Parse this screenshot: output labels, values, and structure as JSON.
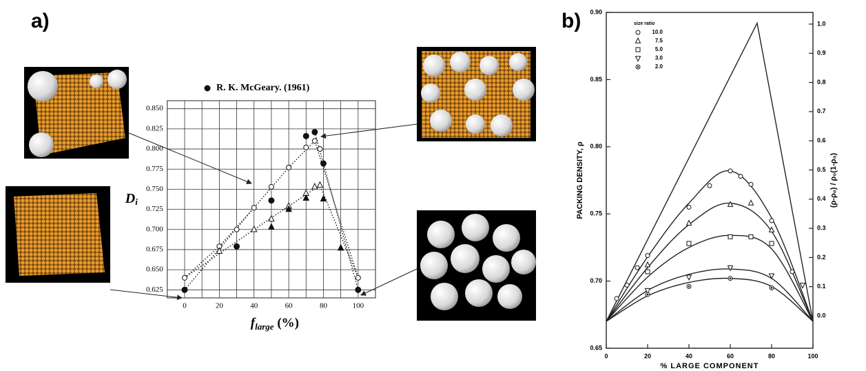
{
  "chart_data": [
    {
      "type": "scatter",
      "panel_label": "a)",
      "xlabel": {
        "text": "f",
        "sub": "large",
        "tail": " (%)"
      },
      "ylabel": {
        "text": "D",
        "sub": "i"
      },
      "xlim": [
        -10,
        110
      ],
      "ylim": [
        0.615,
        0.86
      ],
      "xticks": [
        0,
        20,
        40,
        60,
        80,
        100
      ],
      "xgrid": [
        0,
        10,
        20,
        30,
        40,
        50,
        60,
        70,
        80,
        90,
        100
      ],
      "yticks": [
        {
          "value": 0.625,
          "label": "0.625"
        },
        {
          "value": 0.65,
          "label": "0.650"
        },
        {
          "value": 0.675,
          "label": "0.675"
        },
        {
          "value": 0.7,
          "label": "0.700"
        },
        {
          "value": 0.725,
          "label": "0.725"
        },
        {
          "value": 0.75,
          "label": "0.750"
        },
        {
          "value": 0.775,
          "label": "0.775"
        },
        {
          "value": 0.8,
          "label": "0.800"
        },
        {
          "value": 0.825,
          "label": "0.825"
        },
        {
          "value": 0.85,
          "label": "0.850"
        }
      ],
      "grid": true,
      "series": [
        {
          "name": "R. K. McGeary. (1961)",
          "marker": "circle",
          "filled": true,
          "color": "#111111",
          "size": 4,
          "x": [
            0,
            30,
            50,
            70,
            75,
            80,
            100
          ],
          "values": [
            0.625,
            0.679,
            0.736,
            0.816,
            0.821,
            0.782,
            0.625
          ]
        },
        {
          "marker": "circle",
          "filled": false,
          "color": "#111111",
          "size": 3.5,
          "x": [
            0,
            20,
            30,
            40,
            50,
            60,
            70,
            75,
            78,
            100
          ],
          "values": [
            0.64,
            0.679,
            0.7,
            0.727,
            0.753,
            0.777,
            0.802,
            0.81,
            0.8,
            0.64
          ]
        },
        {
          "marker": "triangle",
          "filled": false,
          "color": "#111111",
          "size": 4,
          "x": [
            20,
            40,
            50,
            60,
            70,
            75,
            78
          ],
          "values": [
            0.673,
            0.7,
            0.713,
            0.729,
            0.745,
            0.753,
            0.755
          ]
        },
        {
          "marker": "triangle",
          "filled": true,
          "color": "#111111",
          "size": 4,
          "x": [
            50,
            60,
            70,
            80,
            90
          ],
          "values": [
            0.703,
            0.725,
            0.739,
            0.738,
            0.677
          ]
        }
      ],
      "lines": [
        {
          "style": "dotted",
          "x": [
            0,
            20,
            40,
            60,
            75,
            100
          ],
          "values": [
            0.64,
            0.679,
            0.727,
            0.777,
            0.81,
            0.64
          ]
        },
        {
          "style": "dotted",
          "x": [
            0,
            40,
            78,
            100
          ],
          "values": [
            0.64,
            0.7,
            0.755,
            0.64
          ]
        },
        {
          "style": "dotted",
          "x": [
            75,
            100
          ],
          "values": [
            0.821,
            0.625
          ]
        },
        {
          "style": "dotted",
          "x": [
            0,
            40
          ],
          "values": [
            0.625,
            0.727
          ]
        }
      ]
    },
    {
      "type": "scatter",
      "panel_label": "b)",
      "xlabel": "% LARGE COMPONENT",
      "ylabel": "PACKING  DENSITY,  ρ",
      "y2label": "(ρ-ρ₀) / ρ₀(1-ρ₀)",
      "legend_title": "size   ratio",
      "xlim": [
        0,
        100
      ],
      "ylim": [
        0.65,
        0.9
      ],
      "y2lim": [
        -0.111,
        1.04
      ],
      "xticks": [
        0,
        20,
        40,
        60,
        80,
        100
      ],
      "yticks": [
        0.65,
        {
          "value": 0.7,
          "label": "0.70"
        },
        0.75,
        {
          "value": 0.8,
          "label": "0.80"
        },
        0.85,
        {
          "value": 0.9,
          "label": "0.90"
        }
      ],
      "y2ticks": [
        {
          "value": 0,
          "label": "0.0"
        },
        0.1,
        0.2,
        0.3,
        0.4,
        0.5,
        0.6,
        0.7,
        0.8,
        0.9,
        {
          "value": 1,
          "label": "1.0"
        }
      ],
      "grid": false,
      "series": [
        {
          "name": "10.0",
          "marker": "circle",
          "filled": false,
          "color": "#111111",
          "size": 3,
          "x": [
            5,
            10,
            15,
            20,
            40,
            50,
            60,
            65,
            70,
            80,
            90
          ],
          "values": [
            0.687,
            0.697,
            0.71,
            0.719,
            0.755,
            0.771,
            0.782,
            0.778,
            0.772,
            0.745,
            0.707
          ]
        },
        {
          "name": "7.5",
          "marker": "triangle",
          "filled": false,
          "color": "#111111",
          "size": 3.5,
          "x": [
            20,
            40,
            60,
            70,
            80
          ],
          "values": [
            0.712,
            0.743,
            0.757,
            0.758,
            0.738
          ]
        },
        {
          "name": "5.0",
          "marker": "square",
          "filled": false,
          "color": "#111111",
          "size": 3,
          "x": [
            20,
            40,
            60,
            70,
            80
          ],
          "values": [
            0.707,
            0.728,
            0.733,
            0.733,
            0.728
          ]
        },
        {
          "name": "3.0",
          "marker": "invtriangle",
          "filled": false,
          "color": "#111111",
          "size": 3.5,
          "x": [
            20,
            40,
            60,
            80,
            95
          ],
          "values": [
            0.693,
            0.703,
            0.71,
            0.704,
            0.697
          ]
        },
        {
          "name": "2.0",
          "marker": "circledot",
          "filled": false,
          "color": "#111111",
          "size": 3,
          "x": [
            20,
            40,
            60,
            80
          ],
          "values": [
            0.69,
            0.696,
            0.702,
            0.695
          ]
        }
      ],
      "lines": [
        {
          "style": "solid",
          "x": [
            0,
            73,
            100
          ],
          "values": [
            0.67,
            0.892,
            0.67
          ]
        },
        {
          "style": "solid",
          "smooth": true,
          "x": [
            0,
            20,
            40,
            60,
            80,
            100
          ],
          "values": [
            0.67,
            0.718,
            0.758,
            0.782,
            0.747,
            0.67
          ]
        },
        {
          "style": "solid",
          "smooth": true,
          "x": [
            0,
            20,
            40,
            60,
            80,
            100
          ],
          "values": [
            0.67,
            0.71,
            0.742,
            0.758,
            0.737,
            0.67
          ]
        },
        {
          "style": "solid",
          "smooth": true,
          "x": [
            0,
            20,
            40,
            60,
            80,
            100
          ],
          "values": [
            0.67,
            0.703,
            0.725,
            0.734,
            0.724,
            0.67
          ]
        },
        {
          "style": "solid",
          "smooth": true,
          "x": [
            0,
            20,
            40,
            60,
            80,
            100
          ],
          "values": [
            0.67,
            0.693,
            0.705,
            0.709,
            0.702,
            0.67
          ]
        },
        {
          "style": "solid",
          "smooth": true,
          "x": [
            0,
            20,
            40,
            60,
            80,
            100
          ],
          "values": [
            0.67,
            0.689,
            0.699,
            0.702,
            0.696,
            0.67
          ]
        }
      ]
    }
  ]
}
